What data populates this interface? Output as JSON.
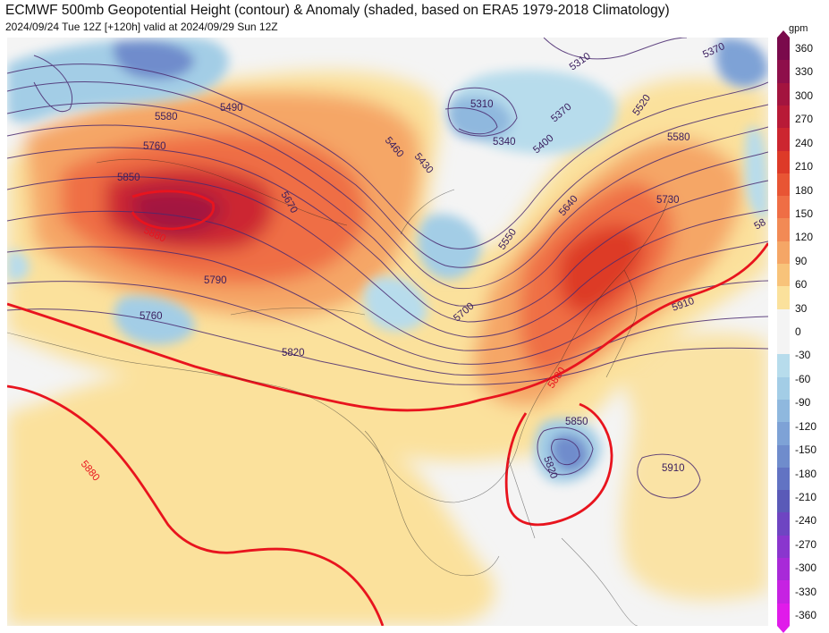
{
  "title": "ECMWF 500mb Geopotential Height (contour) & Anomaly (shaded, based on ERA5 1979-2018 Climatology)",
  "subtitle": "2024/09/24 Tue 12Z [+120h] valid at 2024/09/29 Sun 12Z",
  "colorbar": {
    "unit": "gpm",
    "labels": [
      "360",
      "330",
      "300",
      "270",
      "240",
      "210",
      "180",
      "150",
      "120",
      "90",
      "60",
      "30",
      "0",
      "-30",
      "-60",
      "-90",
      "-120",
      "-150",
      "-180",
      "-210",
      "-240",
      "-270",
      "-300",
      "-330",
      "-360"
    ],
    "colors": [
      "#7a0a4c",
      "#8e0f4a",
      "#a3143f",
      "#b81a37",
      "#cc2630",
      "#dd3a28",
      "#e85534",
      "#ef6e45",
      "#f28a55",
      "#f5a666",
      "#f8c37a",
      "#fbe19c",
      "#f4f4f4",
      "#f4f4f4",
      "#b7dcec",
      "#a3cde6",
      "#8fb8de",
      "#7ea2d6",
      "#6f8ccc",
      "#6273c3",
      "#5a5ab8",
      "#6e45c2",
      "#8a36ce",
      "#a82ad8",
      "#c622e2",
      "#e01bea"
    ]
  },
  "contour_labels": [
    {
      "text": "5580",
      "color": "purple"
    },
    {
      "text": "5490",
      "color": "purple"
    },
    {
      "text": "5760",
      "color": "purple"
    },
    {
      "text": "5850",
      "color": "purple"
    },
    {
      "text": "5880",
      "color": "red"
    },
    {
      "text": "5670",
      "color": "purple"
    },
    {
      "text": "5460",
      "color": "purple"
    },
    {
      "text": "5430",
      "color": "purple"
    },
    {
      "text": "5310",
      "color": "purple"
    },
    {
      "text": "5340",
      "color": "purple"
    },
    {
      "text": "5400",
      "color": "purple"
    },
    {
      "text": "5370",
      "color": "purple"
    },
    {
      "text": "5310",
      "color": "purple"
    },
    {
      "text": "5370",
      "color": "purple"
    },
    {
      "text": "5520",
      "color": "purple"
    },
    {
      "text": "5580",
      "color": "purple"
    },
    {
      "text": "5640",
      "color": "purple"
    },
    {
      "text": "5730",
      "color": "purple"
    },
    {
      "text": "58",
      "color": "purple"
    },
    {
      "text": "5550",
      "color": "purple"
    },
    {
      "text": "5790",
      "color": "purple"
    },
    {
      "text": "5760",
      "color": "purple"
    },
    {
      "text": "5700",
      "color": "purple"
    },
    {
      "text": "5820",
      "color": "purple"
    },
    {
      "text": "5910",
      "color": "purple"
    },
    {
      "text": "5880",
      "color": "red"
    },
    {
      "text": "5880",
      "color": "red"
    },
    {
      "text": "5850",
      "color": "purple"
    },
    {
      "text": "5820",
      "color": "purple"
    },
    {
      "text": "5910",
      "color": "purple"
    }
  ]
}
